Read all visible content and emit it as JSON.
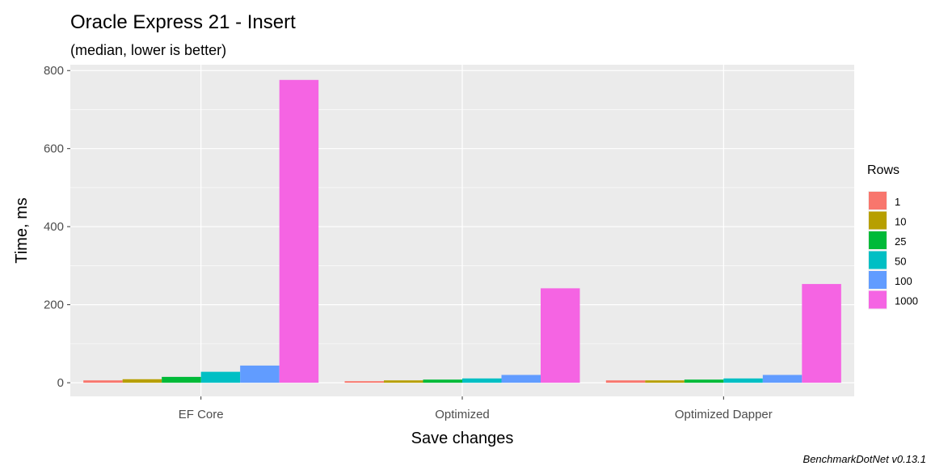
{
  "chart_data": {
    "type": "bar",
    "title": "Oracle Express 21 - Insert",
    "subtitle": "(median, lower is better)",
    "xlabel": "Save changes",
    "ylabel": "Time, ms",
    "caption": "BenchmarkDotNet v0.13.1",
    "categories": [
      "EF Core",
      "Optimized",
      "Optimized Dapper"
    ],
    "ylim": [
      -35,
      815
    ],
    "yticks": [
      0,
      200,
      400,
      600,
      800
    ],
    "grid": true,
    "legend": {
      "title": "Rows",
      "position": "right"
    },
    "series": [
      {
        "name": "1",
        "color": "#F8766D",
        "values": [
          6,
          4,
          6
        ]
      },
      {
        "name": "10",
        "color": "#B79F00",
        "values": [
          9,
          6,
          6
        ]
      },
      {
        "name": "25",
        "color": "#00BA38",
        "values": [
          15,
          8,
          8
        ]
      },
      {
        "name": "50",
        "color": "#00BFC4",
        "values": [
          28,
          11,
          11
        ]
      },
      {
        "name": "100",
        "color": "#619CFF",
        "values": [
          44,
          20,
          20
        ]
      },
      {
        "name": "1000",
        "color": "#F564E3",
        "values": [
          776,
          242,
          253
        ]
      }
    ]
  }
}
